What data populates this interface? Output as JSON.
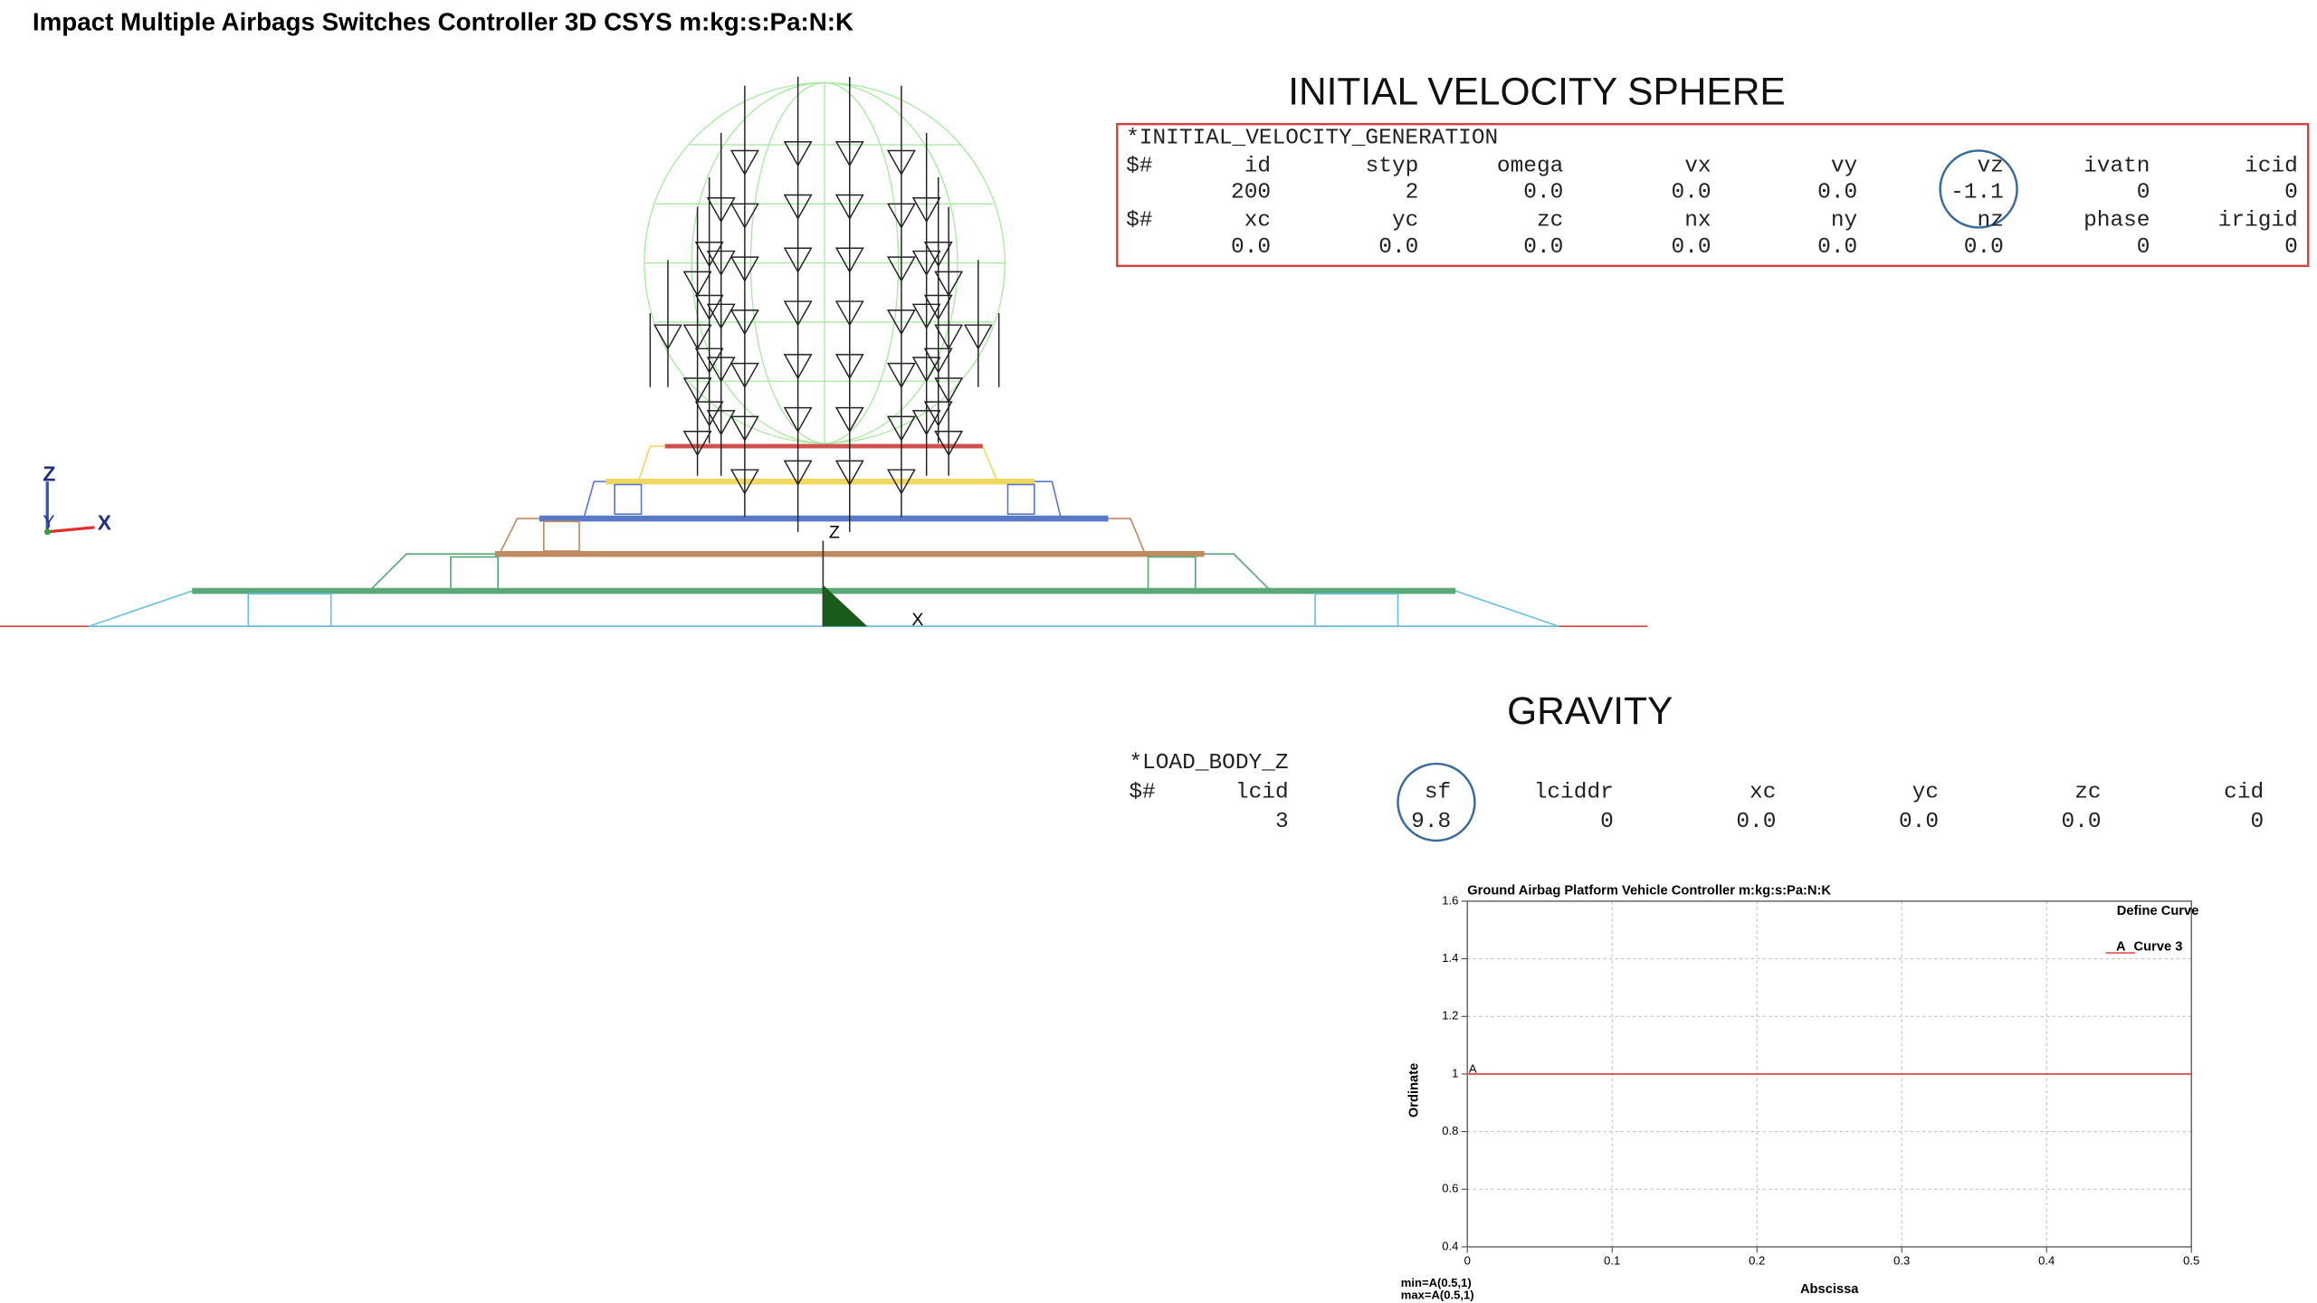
{
  "header": {
    "title": "Impact Multiple Airbags Switches Controller 3D CSYS m:kg:s:Pa:N:K"
  },
  "viewport": {
    "triad": {
      "z": "Z",
      "y": "Y",
      "x": "X"
    },
    "model_axis": {
      "z": "Z",
      "x": "X"
    }
  },
  "velocity": {
    "title": "INITIAL VELOCITY SPHERE",
    "keyword": "*INITIAL_VELOCITY_GENERATION",
    "card1": {
      "comment": "$#",
      "fields": [
        "id",
        "styp",
        "omega",
        "vx",
        "vy",
        "vz",
        "ivatn",
        "icid"
      ],
      "values": [
        "200",
        "2",
        "0.0",
        "0.0",
        "0.0",
        "-1.1",
        "0",
        "0"
      ]
    },
    "card2": {
      "comment": "$#",
      "fields": [
        "xc",
        "yc",
        "zc",
        "nx",
        "ny",
        "nz",
        "phase",
        "irigid"
      ],
      "values": [
        "0.0",
        "0.0",
        "0.0",
        "0.0",
        "0.0",
        "0.0",
        "0",
        "0"
      ]
    }
  },
  "gravity": {
    "title": "GRAVITY",
    "keyword": "*LOAD_BODY_Z",
    "card1": {
      "comment": "$#",
      "fields": [
        "lcid",
        "sf",
        "lciddr",
        "xc",
        "yc",
        "zc",
        "cid"
      ],
      "values": [
        "3",
        "9.8",
        "0",
        "0.0",
        "0.0",
        "0.0",
        "0"
      ]
    }
  },
  "chart_data": {
    "type": "line",
    "title": "Ground Airbag Platform Vehicle Controller m:kg:s:Pa:N:K",
    "x_label": "Abscissa",
    "y_label": "Ordinate",
    "legend_title": "Define Curve",
    "legend_position": "top-right",
    "grid": true,
    "series": [
      {
        "name": "Curve 3",
        "marker": "A",
        "color": "#e05050",
        "x": [
          0,
          0.5
        ],
        "values": [
          1,
          1
        ]
      }
    ],
    "xlim": [
      0,
      0.5
    ],
    "xticks": [
      0,
      0.1,
      0.2,
      0.3,
      0.4,
      0.5
    ],
    "ylim": [
      0.4,
      1.6
    ],
    "yticks": [
      0.4,
      0.6,
      0.8,
      1,
      1.2,
      1.4,
      1.6
    ],
    "annotations": [
      "min=A(0.5,1)",
      "max=A(0.5,1)"
    ]
  }
}
